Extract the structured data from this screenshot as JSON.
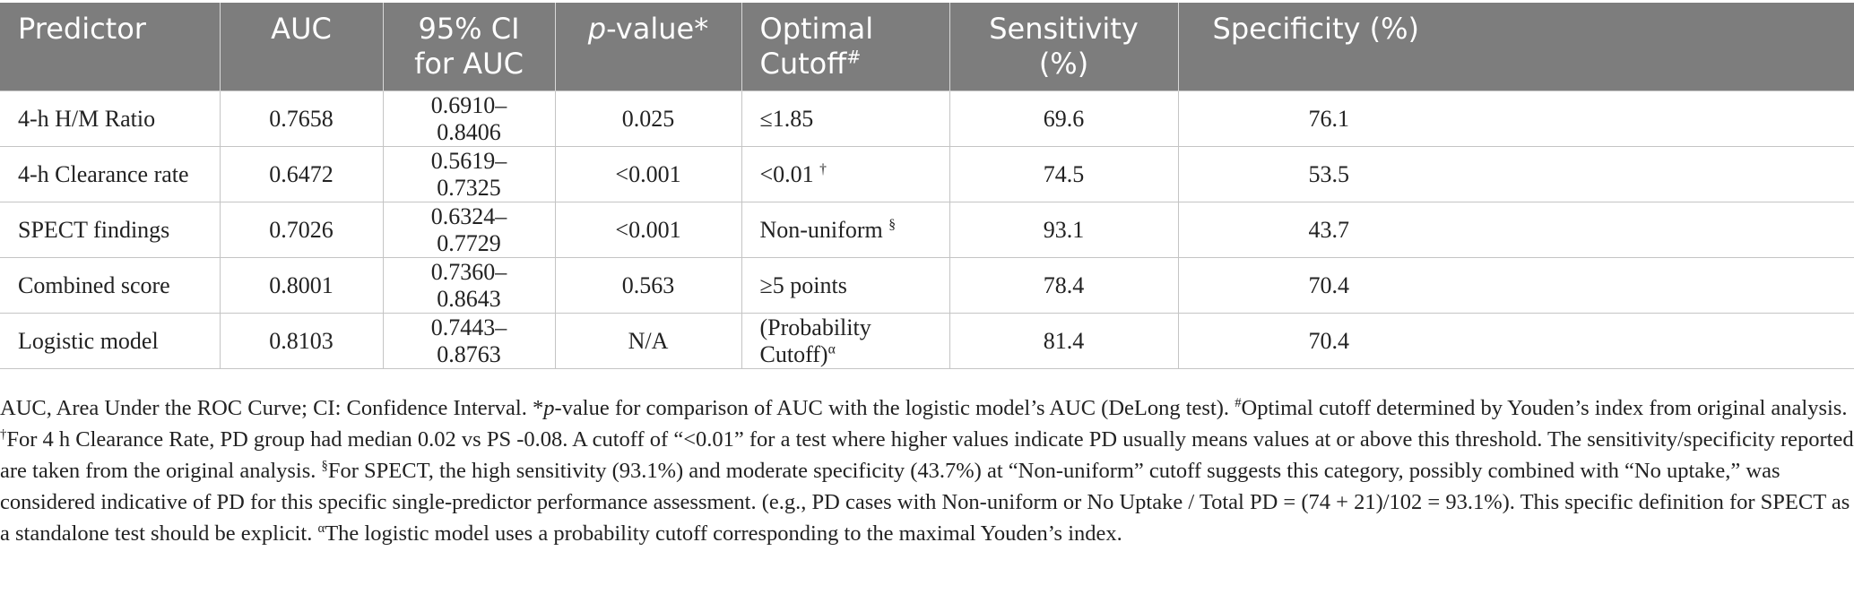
{
  "headers": [
    {
      "text": "Predictor",
      "sup": ""
    },
    {
      "text": "AUC",
      "sup": ""
    },
    {
      "text": "95% CI for AUC",
      "sup": ""
    },
    {
      "italic": "p",
      "text": "-value",
      "sup": "*"
    },
    {
      "text": "Optimal Cutoff",
      "sup": "#"
    },
    {
      "text": "Sensitivity (%)",
      "sup": ""
    },
    {
      "text": "Specificity (%)",
      "sup": ""
    }
  ],
  "rows": [
    {
      "predictor": "4-h H/M Ratio",
      "auc": "0.7658",
      "ci": "0.6910–0.8406",
      "p": "0.025",
      "cutoff": "≤1.85",
      "cutoff_sup": "",
      "sens": "69.6",
      "spec": "76.1"
    },
    {
      "predictor": "4-h Clearance rate",
      "auc": "0.6472",
      "ci": "0.5619–0.7325",
      "p": "<0.001",
      "cutoff": "<0.01 ",
      "cutoff_sup": "†",
      "sens": "74.5",
      "spec": "53.5"
    },
    {
      "predictor": "SPECT findings",
      "auc": "0.7026",
      "ci": "0.6324–0.7729",
      "p": "<0.001",
      "cutoff": "Non-uniform ",
      "cutoff_sup": "§",
      "sens": "93.1",
      "spec": "43.7"
    },
    {
      "predictor": "Combined score",
      "auc": "0.8001",
      "ci": "0.7360–0.8643",
      "p": "0.563",
      "cutoff": "≥5 points",
      "cutoff_sup": "",
      "sens": "78.4",
      "spec": "70.4"
    },
    {
      "predictor": "Logistic model",
      "auc": "0.8103",
      "ci": "0.7443–0.8763",
      "p": "N/A",
      "cutoff": "(Probability Cutoff)",
      "cutoff_sup": "α",
      "sens": "81.4",
      "spec": "70.4"
    }
  ],
  "notes": {
    "n1": "AUC, Area Under the ROC Curve; CI: Confidence Interval. *",
    "n1_italic": "p",
    "n2": "-value for comparison of AUC with the logistic model’s AUC (DeLong test). ",
    "s_hash": "#",
    "n3": "Optimal cutoff determined by Youden’s index from original analysis. ",
    "s_dagger": "†",
    "n4": "For 4 h Clearance Rate, PD group had median 0.02 vs PS -0.08. A cutoff of “<0.01” for a test where higher values indicate PD usually means values at or above this threshold. The sensitivity/specificity reported are taken from the original analysis. ",
    "s_section": "§",
    "n5": "For SPECT, the high sensitivity (93.1%) and moderate specificity (43.7%) at “Non-uniform” cutoff suggests this category, possibly combined with “No uptake,” was considered indicative of PD for this specific single-predictor performance assessment. (e.g., PD cases with Non-uniform or No Uptake / Total PD = (74 + 21)/102 = 93.1%). This specific definition for SPECT as a standalone test should be explicit. ",
    "s_alpha": "α",
    "n6": "The logistic model uses a probability cutoff corresponding to the maximal Youden’s index."
  },
  "colors": {
    "header_bg": "#7d7d7d",
    "header_text": "#ffffff",
    "border": "#c4c4c4"
  }
}
